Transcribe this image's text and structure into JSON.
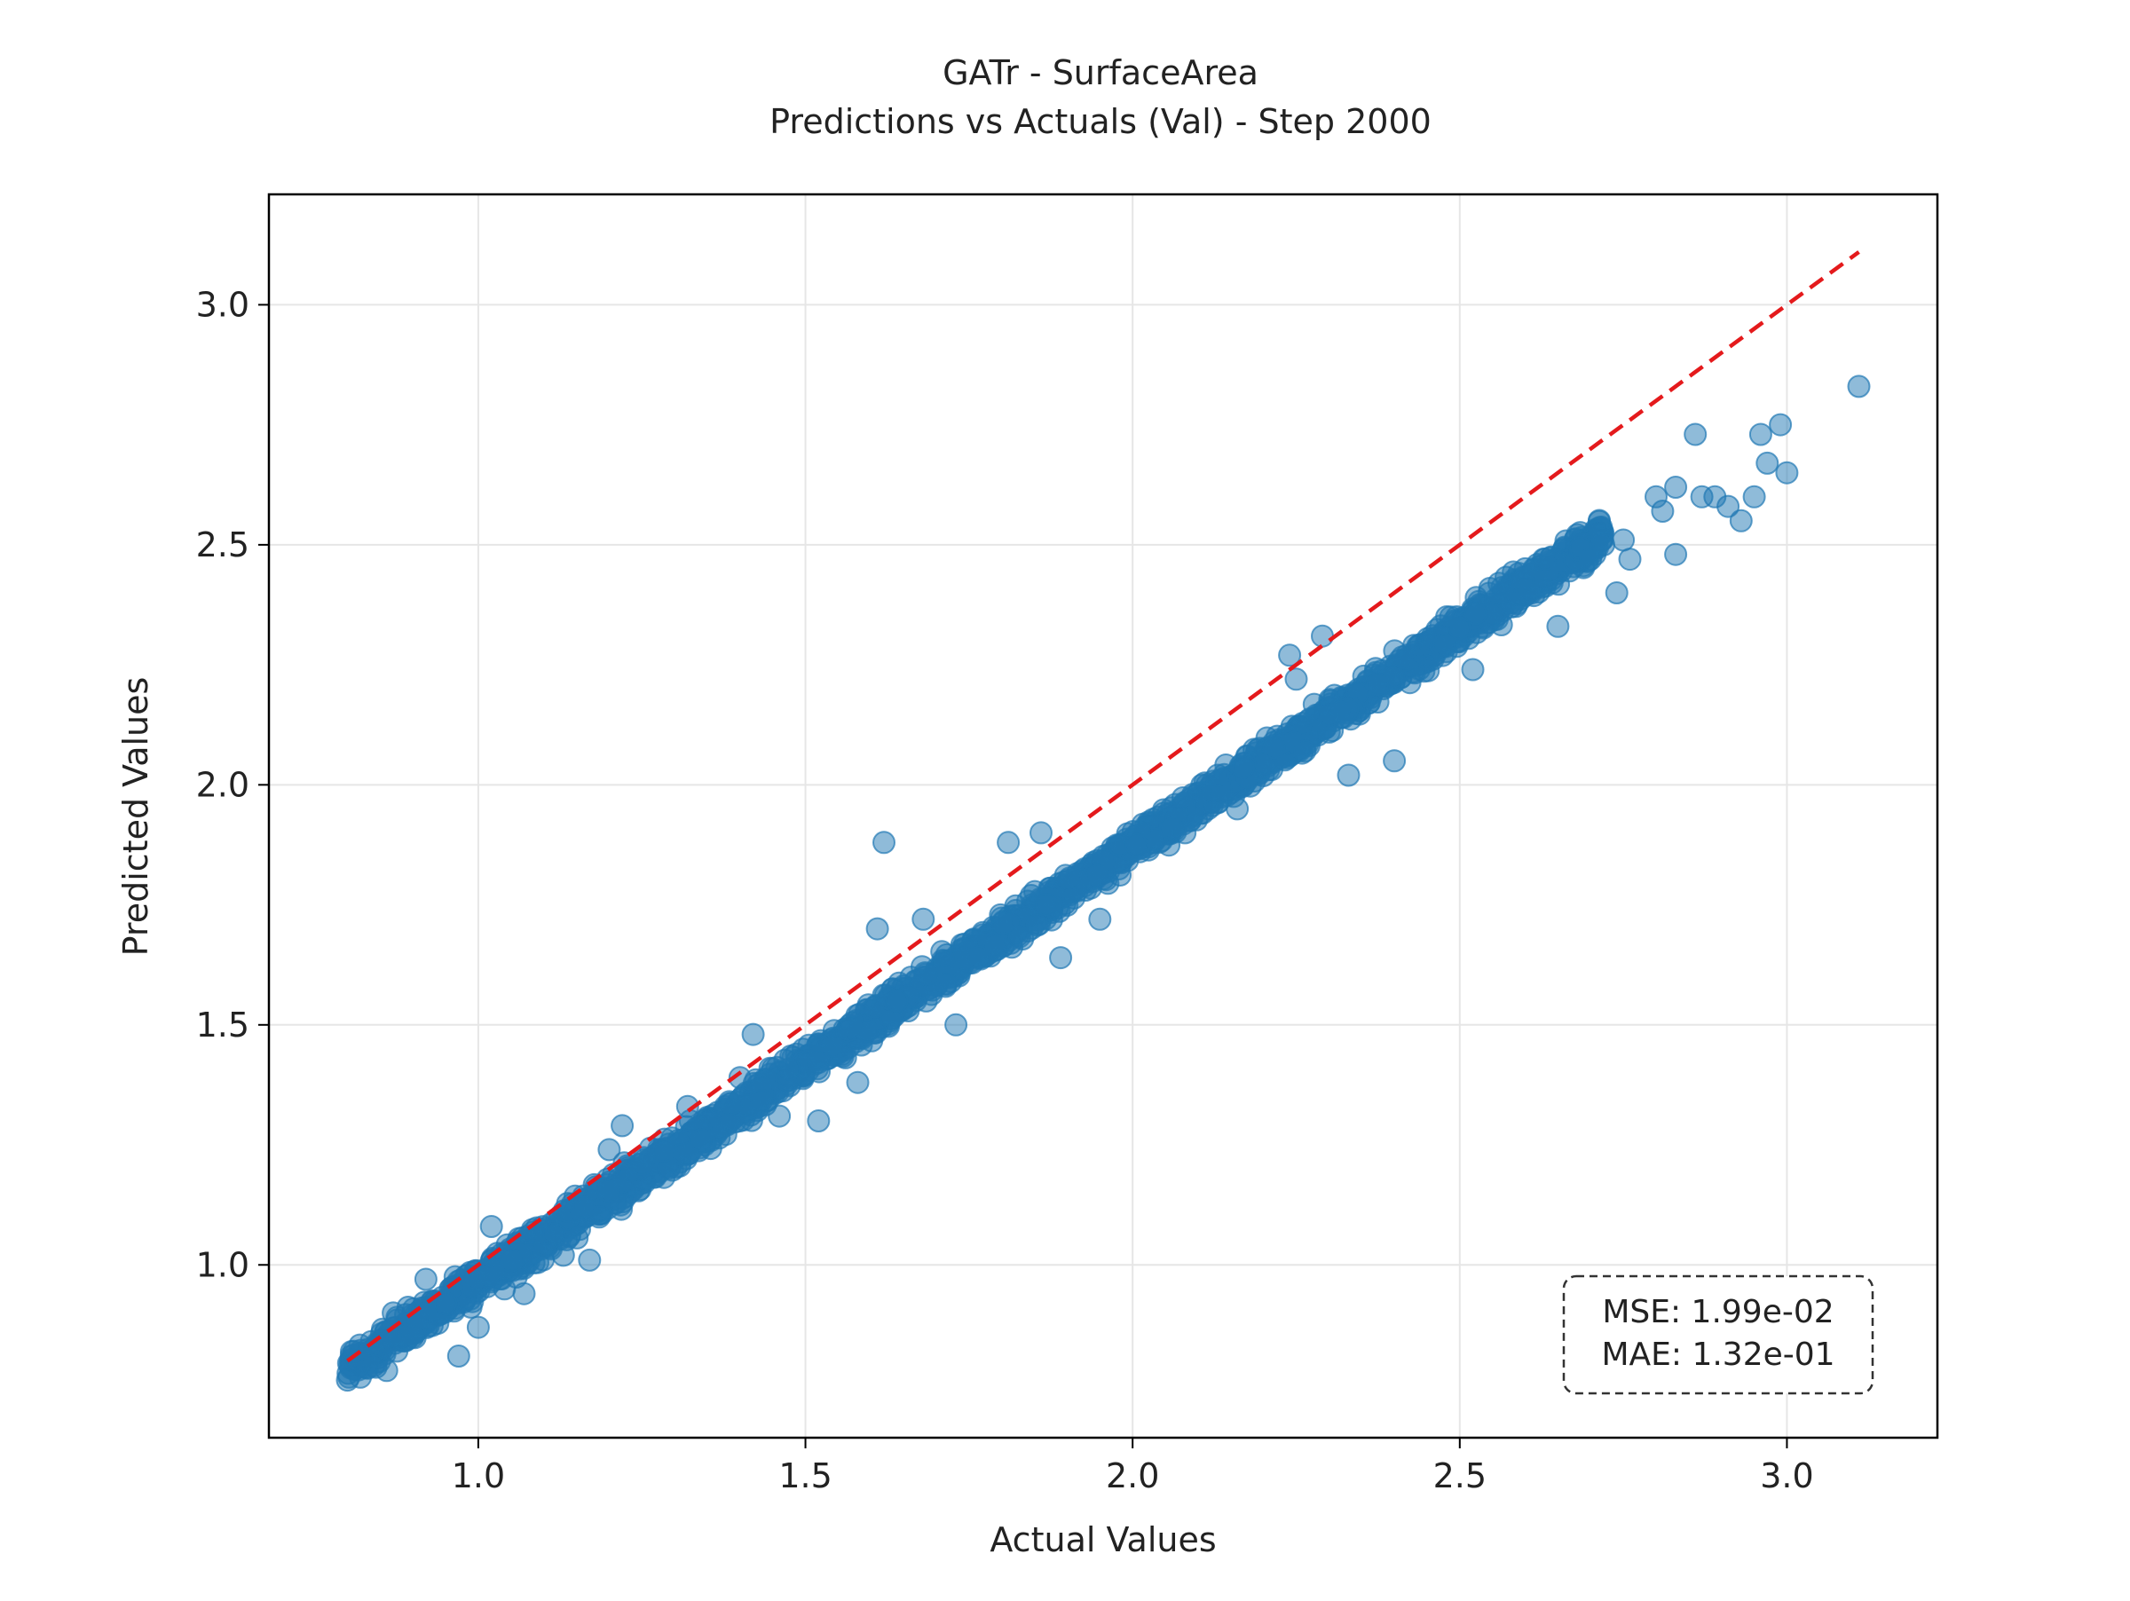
{
  "chart_data": {
    "type": "scatter",
    "title": "GATr - SurfaceArea",
    "subtitle": "Predictions vs Actuals (Val) - Step 2000",
    "xlabel": "Actual Values",
    "ylabel": "Predicted Values",
    "xlim": [
      0.68,
      3.23
    ],
    "ylim": [
      0.64,
      3.23
    ],
    "xticks": [
      "1.0",
      "1.5",
      "2.0",
      "2.5",
      "3.0"
    ],
    "yticks": [
      "1.0",
      "1.5",
      "2.0",
      "2.5",
      "3.0"
    ],
    "grid": true,
    "point_color": "#1f77b4",
    "reference_line": {
      "style": "dashed",
      "color": "#e41a1c",
      "from": [
        0.8,
        0.8
      ],
      "to": [
        3.11,
        3.11
      ]
    },
    "annotation": {
      "lines": [
        "MSE: 1.99e-02",
        "MAE: 1.32e-01"
      ],
      "position": "bottom-right"
    },
    "trend": {
      "intercept": 0.06,
      "slope": 0.905,
      "x_range": [
        0.8,
        2.72
      ]
    },
    "points": [
      [
        0.8,
        0.76
      ],
      [
        0.81,
        0.82
      ],
      [
        0.84,
        0.79
      ],
      [
        0.86,
        0.78
      ],
      [
        0.87,
        0.9
      ],
      [
        0.9,
        0.85
      ],
      [
        0.92,
        0.97
      ],
      [
        0.95,
        0.92
      ],
      [
        0.97,
        0.81
      ],
      [
        1.0,
        0.87
      ],
      [
        1.02,
        1.08
      ],
      [
        1.04,
        0.95
      ],
      [
        1.07,
        0.94
      ],
      [
        1.13,
        1.02
      ],
      [
        1.17,
        1.01
      ],
      [
        1.22,
        1.29
      ],
      [
        1.2,
        1.24
      ],
      [
        1.25,
        1.21
      ],
      [
        1.32,
        1.33
      ],
      [
        1.34,
        1.26
      ],
      [
        1.4,
        1.39
      ],
      [
        1.42,
        1.48
      ],
      [
        1.46,
        1.31
      ],
      [
        1.52,
        1.3
      ],
      [
        1.58,
        1.38
      ],
      [
        1.62,
        1.88
      ],
      [
        1.61,
        1.7
      ],
      [
        1.64,
        1.55
      ],
      [
        1.68,
        1.72
      ],
      [
        1.73,
        1.5
      ],
      [
        1.81,
        1.88
      ],
      [
        1.86,
        1.9
      ],
      [
        1.89,
        1.64
      ],
      [
        1.95,
        1.72
      ],
      [
        2.08,
        1.9
      ],
      [
        2.13,
        2.02
      ],
      [
        2.16,
        1.95
      ],
      [
        2.24,
        2.27
      ],
      [
        2.25,
        2.22
      ],
      [
        2.29,
        2.31
      ],
      [
        2.33,
        2.02
      ],
      [
        2.4,
        2.05
      ],
      [
        2.48,
        2.35
      ],
      [
        2.52,
        2.24
      ],
      [
        2.56,
        2.42
      ],
      [
        2.6,
        2.45
      ],
      [
        2.63,
        2.47
      ],
      [
        2.65,
        2.33
      ],
      [
        2.7,
        2.47
      ],
      [
        2.72,
        2.5
      ],
      [
        2.74,
        2.4
      ],
      [
        2.75,
        2.51
      ],
      [
        2.76,
        2.47
      ],
      [
        2.8,
        2.6
      ],
      [
        2.81,
        2.57
      ],
      [
        2.83,
        2.62
      ],
      [
        2.83,
        2.48
      ],
      [
        2.86,
        2.73
      ],
      [
        2.87,
        2.6
      ],
      [
        2.89,
        2.6
      ],
      [
        2.91,
        2.58
      ],
      [
        2.93,
        2.55
      ],
      [
        2.95,
        2.6
      ],
      [
        2.96,
        2.73
      ],
      [
        2.97,
        2.67
      ],
      [
        2.99,
        2.75
      ],
      [
        3.0,
        2.65
      ],
      [
        3.11,
        2.83
      ]
    ]
  }
}
